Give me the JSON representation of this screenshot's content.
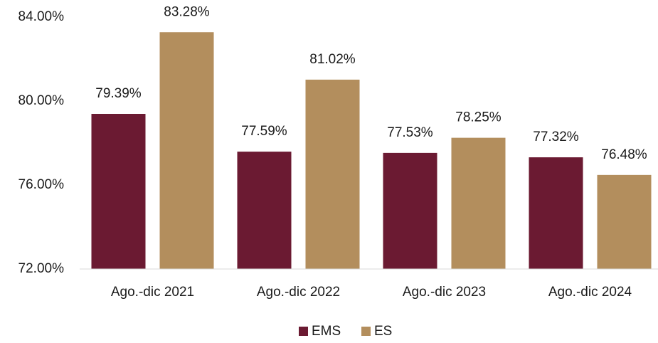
{
  "chart_data": {
    "type": "bar",
    "categories": [
      "Ago.-dic 2021",
      "Ago.-dic 2022",
      "Ago.-dic 2023",
      "Ago.-dic 2024"
    ],
    "series": [
      {
        "name": "EMS",
        "color": "#6b1a32",
        "values": [
          79.39,
          77.59,
          77.53,
          77.32
        ],
        "value_labels": [
          "79.39%",
          "77.59%",
          "77.53%",
          "77.32%"
        ]
      },
      {
        "name": "ES",
        "color": "#b38e5d",
        "values": [
          83.28,
          81.02,
          78.25,
          76.48
        ],
        "value_labels": [
          "83.28%",
          "81.02%",
          "78.25%",
          "76.48%"
        ]
      }
    ],
    "ylim": [
      72,
      84
    ],
    "yticks": [
      {
        "value": 72,
        "label": "72.00%"
      },
      {
        "value": 76,
        "label": "76.00%"
      },
      {
        "value": 80,
        "label": "80.00%"
      },
      {
        "value": 84,
        "label": "84.00%"
      }
    ],
    "grid": false,
    "legend": "bottom"
  }
}
